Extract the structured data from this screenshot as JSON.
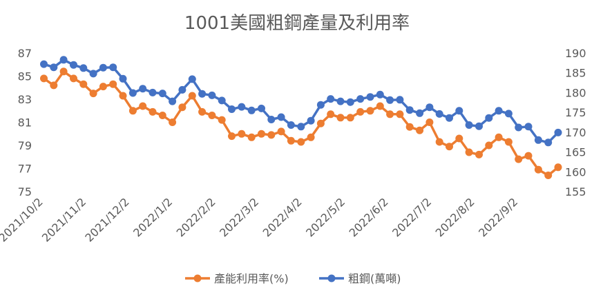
{
  "chart_data": {
    "type": "line",
    "title": "1001美國粗鋼產量及利用率",
    "x_tick_labels": [
      "2021/10/2",
      "2021/11/2",
      "2021/12/2",
      "2022/1/2",
      "2022/2/2",
      "2022/3/2",
      "2022/4/2",
      "2022/5/2",
      "2022/6/2",
      "2022/7/2",
      "2022/8/2",
      "2022/9/2"
    ],
    "left_axis": {
      "ylim": [
        75,
        87
      ],
      "ticks": [
        "75",
        "77",
        "79",
        "81",
        "83",
        "85",
        "87"
      ]
    },
    "right_axis": {
      "ylim": [
        155,
        190
      ],
      "ticks": [
        "155",
        "160",
        "165",
        "170",
        "175",
        "180",
        "185",
        "190"
      ]
    },
    "series": [
      {
        "name": "產能利用率(%)",
        "axis": "left",
        "color": "#ED7D31",
        "values": [
          84.8,
          84.2,
          85.4,
          84.8,
          84.3,
          83.5,
          84.1,
          84.3,
          83.3,
          82.0,
          82.4,
          81.9,
          81.6,
          81.0,
          82.3,
          83.3,
          81.9,
          81.6,
          81.2,
          79.8,
          80.0,
          79.7,
          80.0,
          79.9,
          80.2,
          79.4,
          79.3,
          79.7,
          80.9,
          81.7,
          81.4,
          81.4,
          81.9,
          82.0,
          82.4,
          81.7,
          81.7,
          80.6,
          80.3,
          81.0,
          79.3,
          78.9,
          79.6,
          78.4,
          78.2,
          79.0,
          79.7,
          79.3,
          77.8,
          78.1,
          76.9,
          76.4,
          77.1
        ]
      },
      {
        "name": "粗鋼(萬噸)",
        "axis": "right",
        "color": "#4472C4",
        "values": [
          187.2,
          186.4,
          188.3,
          187.0,
          186.2,
          184.8,
          186.3,
          186.4,
          183.5,
          179.9,
          181.0,
          180.0,
          179.8,
          177.8,
          180.7,
          183.4,
          179.7,
          179.3,
          178.0,
          175.8,
          176.4,
          175.5,
          176.0,
          173.2,
          173.8,
          171.8,
          171.4,
          172.9,
          176.9,
          178.4,
          177.8,
          177.6,
          178.4,
          178.9,
          179.5,
          178.1,
          178.2,
          175.6,
          174.8,
          176.3,
          174.6,
          173.6,
          175.4,
          171.8,
          171.5,
          173.6,
          175.4,
          174.7,
          171.2,
          171.4,
          168.0,
          167.4,
          169.9
        ]
      }
    ]
  }
}
